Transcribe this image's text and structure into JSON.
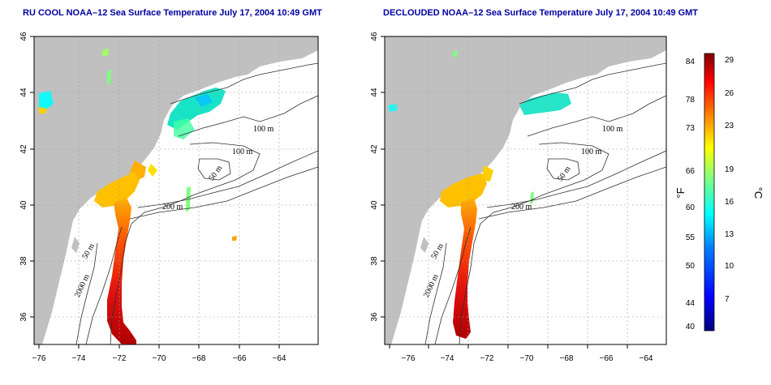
{
  "panels": [
    {
      "title": "RU COOL NOAA–12 Sea Surface Temperature July 17, 2004 10:49 GMT"
    },
    {
      "title": "DECLOUDED NOAA–12 Sea Surface Temperature July 17, 2004 10:49 GMT"
    }
  ],
  "axes": {
    "x_ticks": [
      "−76",
      "−74",
      "−72",
      "−70",
      "−68",
      "−66",
      "−64"
    ],
    "y_ticks": [
      "46",
      "44",
      "42",
      "40",
      "38",
      "36"
    ],
    "xlim": [
      -77.2,
      -62.8
    ],
    "ylim": [
      35,
      46
    ],
    "grid": true
  },
  "contour_labels": [
    "100 m",
    "100 m",
    "50 m",
    "200 m",
    "50 m",
    "2000 m"
  ],
  "colorbar": {
    "fahrenheit_ticks": [
      "84",
      "78",
      "73",
      "66",
      "60",
      "55",
      "50",
      "44",
      "40"
    ],
    "celsius_ticks": [
      "29",
      "26",
      "23",
      "19",
      "16",
      "13",
      "10",
      "7"
    ],
    "fahrenheit_label": "°F",
    "celsius_label": "°C",
    "range_celsius": [
      4.4,
      29.5
    ],
    "colors": [
      "#00007f",
      "#0000ff",
      "#0080ff",
      "#00ffff",
      "#80ff80",
      "#ffff00",
      "#ff8000",
      "#ff0000",
      "#7f0000"
    ]
  },
  "colors": {
    "land": "#c0c0c0",
    "title": "#0000a0"
  }
}
